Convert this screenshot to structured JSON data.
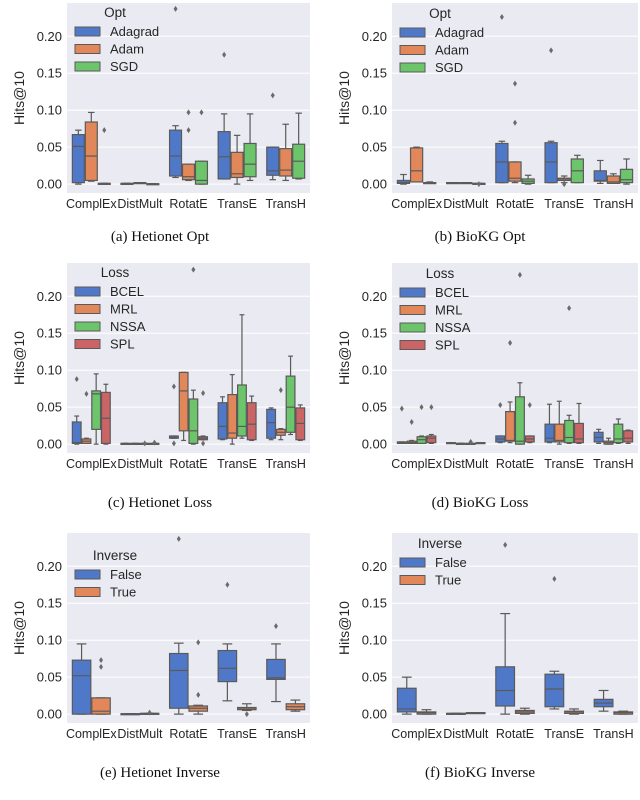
{
  "colors": {
    "background": "#eaeaf2",
    "grid": "#ffffff",
    "box_edge": "#5a5a5a",
    "palette": [
      "#5078c8",
      "#e2875a",
      "#6cc56b",
      "#cb6464"
    ]
  },
  "box_fields": [
    "whislo",
    "q1",
    "med",
    "q3",
    "whishi",
    "fliers"
  ],
  "chart_data": [
    {
      "type": "boxplot",
      "caption": "(a) Hetionet Opt",
      "ylabel": "Hits@10",
      "ylim": [
        -0.012,
        0.245
      ],
      "yticks": [
        "0.00",
        "0.05",
        "0.10",
        "0.15",
        "0.20"
      ],
      "grid": true,
      "legend_position": "top-left",
      "legend_title": "Opt",
      "categories": [
        "ComplEx",
        "DistMult",
        "RotatE",
        "TransE",
        "TransH"
      ],
      "series": [
        {
          "name": "Adagrad",
          "boxes": [
            [
              0.0,
              0.002,
              0.051,
              0.067,
              0.073,
              []
            ],
            [
              0.001,
              0.001,
              0.001,
              0.001,
              0.001,
              []
            ],
            [
              0.009,
              0.011,
              0.038,
              0.073,
              0.079,
              [
                0.237
              ]
            ],
            [
              0.007,
              0.007,
              0.037,
              0.071,
              0.095,
              [
                0.175
              ]
            ],
            [
              0.006,
              0.012,
              0.018,
              0.05,
              0.05,
              [
                0.12
              ]
            ]
          ]
        },
        {
          "name": "Adam",
          "boxes": [
            [
              0.004,
              0.005,
              0.038,
              0.084,
              0.097,
              []
            ],
            [
              0.002,
              0.002,
              0.002,
              0.002,
              0.002,
              []
            ],
            [
              0.005,
              0.006,
              0.01,
              0.027,
              0.027,
              [
                0.073,
                0.097
              ]
            ],
            [
              0.0,
              0.009,
              0.014,
              0.043,
              0.066,
              []
            ],
            [
              0.005,
              0.011,
              0.019,
              0.048,
              0.081,
              []
            ]
          ]
        },
        {
          "name": "SGD",
          "boxes": [
            [
              0.001,
              0.001,
              0.001,
              0.001,
              0.001,
              [
                0.073
              ]
            ],
            [
              0.0005,
              0.0005,
              0.0005,
              0.0005,
              0.0005,
              []
            ],
            [
              0.0,
              0.0,
              0.005,
              0.031,
              0.031,
              [
                0.097
              ]
            ],
            [
              0.005,
              0.01,
              0.027,
              0.055,
              0.095,
              []
            ],
            [
              0.007,
              0.008,
              0.031,
              0.054,
              0.096,
              []
            ]
          ]
        }
      ]
    },
    {
      "type": "boxplot",
      "caption": "(b) BioKG Opt",
      "ylabel": "Hits@10",
      "ylim": [
        -0.012,
        0.245
      ],
      "yticks": [
        "0.00",
        "0.05",
        "0.10",
        "0.15",
        "0.20"
      ],
      "grid": true,
      "legend_position": "top-left",
      "legend_title": "Opt",
      "categories": [
        "ComplEx",
        "DistMult",
        "RotatE",
        "TransE",
        "TransH"
      ],
      "series": [
        {
          "name": "Adagrad",
          "boxes": [
            [
              0.0,
              0.001,
              0.002,
              0.005,
              0.013,
              []
            ],
            [
              0.002,
              0.002,
              0.002,
              0.002,
              0.002,
              []
            ],
            [
              0.002,
              0.002,
              0.03,
              0.055,
              0.058,
              [
                0.226
              ]
            ],
            [
              0.002,
              0.002,
              0.03,
              0.056,
              0.058,
              [
                0.181
              ]
            ],
            [
              0.001,
              0.004,
              0.005,
              0.018,
              0.032,
              []
            ]
          ]
        },
        {
          "name": "Adam",
          "boxes": [
            [
              0.003,
              0.003,
              0.018,
              0.049,
              0.05,
              []
            ],
            [
              0.002,
              0.002,
              0.002,
              0.002,
              0.002,
              []
            ],
            [
              0.002,
              0.004,
              0.008,
              0.03,
              0.03,
              [
                0.136,
                0.083
              ]
            ],
            [
              0.002,
              0.005,
              0.007,
              0.008,
              0.011,
              [
                0.0
              ]
            ],
            [
              0.001,
              0.001,
              0.003,
              0.011,
              0.014,
              []
            ]
          ]
        },
        {
          "name": "SGD",
          "boxes": [
            [
              0.001,
              0.001,
              0.002,
              0.002,
              0.003,
              []
            ],
            [
              0.001,
              0.001,
              0.001,
              0.001,
              0.001,
              [
                0.0
              ]
            ],
            [
              0.0,
              0.001,
              0.004,
              0.007,
              0.012,
              []
            ],
            [
              0.002,
              0.002,
              0.018,
              0.034,
              0.039,
              []
            ],
            [
              0.0,
              0.002,
              0.006,
              0.02,
              0.034,
              []
            ]
          ]
        }
      ]
    },
    {
      "type": "boxplot",
      "caption": "(c) Hetionet Loss",
      "ylabel": "Hits@10",
      "ylim": [
        -0.012,
        0.245
      ],
      "yticks": [
        "0.00",
        "0.05",
        "0.10",
        "0.15",
        "0.20"
      ],
      "grid": true,
      "legend_position": "top-left",
      "legend_title": "Loss",
      "categories": [
        "ComplEx",
        "DistMult",
        "RotatE",
        "TransE",
        "TransH"
      ],
      "series": [
        {
          "name": "BCEL",
          "boxes": [
            [
              0.0,
              0.001,
              0.002,
              0.03,
              0.038,
              [
                0.088
              ]
            ],
            [
              0.001,
              0.001,
              0.001,
              0.001,
              0.001,
              []
            ],
            [
              0.008,
              0.008,
              0.009,
              0.011,
              0.011,
              [
                0.078,
                0.001
              ]
            ],
            [
              0.006,
              0.007,
              0.024,
              0.056,
              0.064,
              []
            ],
            [
              0.006,
              0.008,
              0.029,
              0.047,
              0.049,
              []
            ]
          ]
        },
        {
          "name": "MRL",
          "boxes": [
            [
              0.001,
              0.001,
              0.004,
              0.007,
              0.008,
              [
                0.068
              ]
            ],
            [
              0.001,
              0.001,
              0.001,
              0.001,
              0.001,
              []
            ],
            [
              0.005,
              0.018,
              0.072,
              0.097,
              0.097,
              []
            ],
            [
              0.0,
              0.008,
              0.015,
              0.067,
              0.094,
              []
            ],
            [
              0.006,
              0.012,
              0.016,
              0.02,
              0.021,
              [
                0.073
              ]
            ]
          ]
        },
        {
          "name": "NSSA",
          "boxes": [
            [
              0.0,
              0.02,
              0.068,
              0.072,
              0.095,
              []
            ],
            [
              0.001,
              0.001,
              0.001,
              0.001,
              0.001,
              [
                0.001
              ]
            ],
            [
              0.0,
              0.001,
              0.018,
              0.061,
              0.073,
              [
                0.236
              ]
            ],
            [
              0.008,
              0.011,
              0.024,
              0.08,
              0.175,
              []
            ],
            [
              0.013,
              0.016,
              0.05,
              0.092,
              0.119,
              []
            ]
          ]
        },
        {
          "name": "SPL",
          "boxes": [
            [
              0.0,
              0.001,
              0.035,
              0.07,
              0.081,
              []
            ],
            [
              0.001,
              0.001,
              0.001,
              0.001,
              0.001,
              [
                0.002
              ]
            ],
            [
              0.006,
              0.006,
              0.008,
              0.01,
              0.011,
              [
                0.069,
                0.001
              ]
            ],
            [
              0.005,
              0.006,
              0.027,
              0.056,
              0.065,
              []
            ],
            [
              0.005,
              0.006,
              0.028,
              0.049,
              0.053,
              []
            ]
          ]
        }
      ]
    },
    {
      "type": "boxplot",
      "caption": "(d) BioKG Loss",
      "ylabel": "Hits@10",
      "ylim": [
        -0.012,
        0.245
      ],
      "yticks": [
        "0.00",
        "0.05",
        "0.10",
        "0.15",
        "0.20"
      ],
      "grid": true,
      "legend_position": "top-left",
      "legend_title": "Loss",
      "categories": [
        "ComplEx",
        "DistMult",
        "RotatE",
        "TransE",
        "TransH"
      ],
      "series": [
        {
          "name": "BCEL",
          "boxes": [
            [
              0.001,
              0.001,
              0.002,
              0.003,
              0.003,
              [
                0.048
              ]
            ],
            [
              0.001,
              0.001,
              0.001,
              0.002,
              0.002,
              []
            ],
            [
              0.002,
              0.003,
              0.007,
              0.011,
              0.011,
              [
                0.053
              ]
            ],
            [
              0.002,
              0.003,
              0.008,
              0.027,
              0.054,
              []
            ],
            [
              0.001,
              0.003,
              0.009,
              0.016,
              0.02,
              []
            ]
          ]
        },
        {
          "name": "MRL",
          "boxes": [
            [
              0.001,
              0.001,
              0.002,
              0.004,
              0.005,
              [
                0.03
              ]
            ],
            [
              0.001,
              0.001,
              0.001,
              0.001,
              0.001,
              []
            ],
            [
              0.002,
              0.004,
              0.005,
              0.044,
              0.057,
              [
                0.137
              ]
            ],
            [
              0.0,
              0.003,
              0.005,
              0.027,
              0.058,
              []
            ],
            [
              0.0,
              0.0,
              0.002,
              0.004,
              0.008,
              []
            ]
          ]
        },
        {
          "name": "NSSA",
          "boxes": [
            [
              0.001,
              0.001,
              0.006,
              0.01,
              0.011,
              [
                0.05
              ]
            ],
            [
              0.001,
              0.001,
              0.001,
              0.001,
              0.001,
              [
                0.003
              ]
            ],
            [
              0.0,
              0.0,
              0.004,
              0.064,
              0.083,
              [
                0.229
              ]
            ],
            [
              0.001,
              0.002,
              0.009,
              0.032,
              0.039,
              [
                0.184
              ]
            ],
            [
              0.001,
              0.002,
              0.007,
              0.027,
              0.034,
              []
            ]
          ]
        },
        {
          "name": "SPL",
          "boxes": [
            [
              0.001,
              0.002,
              0.008,
              0.011,
              0.013,
              [
                0.05
              ]
            ],
            [
              0.001,
              0.001,
              0.002,
              0.002,
              0.002,
              []
            ],
            [
              0.002,
              0.003,
              0.007,
              0.011,
              0.011,
              [
                0.053
              ]
            ],
            [
              0.001,
              0.002,
              0.007,
              0.028,
              0.055,
              []
            ],
            [
              0.001,
              0.003,
              0.008,
              0.018,
              0.019,
              []
            ]
          ]
        }
      ]
    },
    {
      "type": "boxplot",
      "caption": "(e) Hetionet Inverse",
      "ylabel": "Hits@10",
      "ylim": [
        -0.012,
        0.245
      ],
      "yticks": [
        "0.00",
        "0.05",
        "0.10",
        "0.15",
        "0.20"
      ],
      "grid": true,
      "legend_position": "top-left",
      "legend_title": "Inverse",
      "categories": [
        "ComplEx",
        "DistMult",
        "RotatE",
        "TransE",
        "TransH"
      ],
      "series": [
        {
          "name": "False",
          "boxes": [
            [
              0.0,
              0.0,
              0.052,
              0.073,
              0.095,
              []
            ],
            [
              0.0005,
              0.0005,
              0.0005,
              0.0005,
              0.0005,
              []
            ],
            [
              0.0,
              0.008,
              0.059,
              0.082,
              0.096,
              [
                0.237
              ]
            ],
            [
              0.018,
              0.044,
              0.062,
              0.086,
              0.095,
              [
                0.175
              ]
            ],
            [
              0.017,
              0.047,
              0.049,
              0.074,
              0.095,
              [
                0.119
              ]
            ]
          ]
        },
        {
          "name": "True",
          "boxes": [
            [
              0.0,
              0.0,
              0.004,
              0.022,
              0.022,
              [
                0.064,
                0.073
              ]
            ],
            [
              0.001,
              0.001,
              0.001,
              0.001,
              0.001,
              [
                0.002
              ]
            ],
            [
              0.0,
              0.004,
              0.008,
              0.011,
              0.012,
              [
                0.026,
                0.097
              ]
            ],
            [
              0.005,
              0.006,
              0.007,
              0.009,
              0.014,
              [
                0.0
              ]
            ],
            [
              0.004,
              0.006,
              0.01,
              0.014,
              0.019,
              []
            ]
          ]
        }
      ]
    },
    {
      "type": "boxplot",
      "caption": "(f) BioKG Inverse",
      "ylabel": "Hits@10",
      "ylim": [
        -0.012,
        0.245
      ],
      "yticks": [
        "0.00",
        "0.05",
        "0.10",
        "0.15",
        "0.20"
      ],
      "grid": true,
      "legend_position": "top-left",
      "legend_title": "Inverse",
      "categories": [
        "ComplEx",
        "DistMult",
        "RotatE",
        "TransE",
        "TransH"
      ],
      "series": [
        {
          "name": "False",
          "boxes": [
            [
              0.0,
              0.003,
              0.007,
              0.035,
              0.05,
              []
            ],
            [
              0.001,
              0.001,
              0.001,
              0.001,
              0.001,
              []
            ],
            [
              0.0,
              0.011,
              0.032,
              0.064,
              0.136,
              [
                0.229
              ]
            ],
            [
              0.007,
              0.01,
              0.034,
              0.054,
              0.058,
              [
                0.183
              ]
            ],
            [
              0.004,
              0.01,
              0.015,
              0.02,
              0.032,
              []
            ]
          ]
        },
        {
          "name": "True",
          "boxes": [
            [
              0.0,
              0.0,
              0.002,
              0.003,
              0.006,
              []
            ],
            [
              0.002,
              0.002,
              0.002,
              0.002,
              0.002,
              []
            ],
            [
              0.0,
              0.001,
              0.003,
              0.005,
              0.008,
              []
            ],
            [
              0.0,
              0.001,
              0.003,
              0.004,
              0.007,
              []
            ],
            [
              0.0,
              0.0,
              0.002,
              0.003,
              0.004,
              []
            ]
          ]
        }
      ]
    }
  ]
}
